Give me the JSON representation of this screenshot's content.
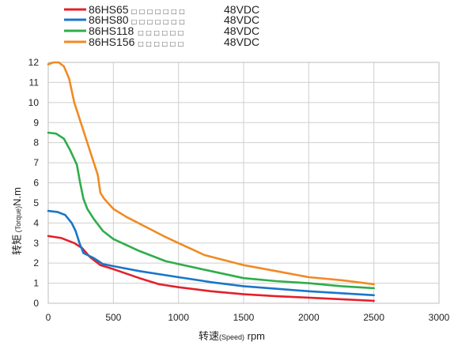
{
  "chart_data": {
    "type": "line",
    "xlabel": {
      "main_before": "转速",
      "small": "(Speed)",
      "main_after": " rpm"
    },
    "ylabel": {
      "main_before": "转矩",
      "small": " (Torque)",
      "main_after": "N.m"
    },
    "xlim": [
      0,
      3000
    ],
    "ylim": [
      0,
      12
    ],
    "x_ticks": [
      "0",
      "500",
      "1000",
      "1500",
      "2000",
      "2500",
      "3000"
    ],
    "y_ticks": [
      "0",
      "1",
      "2",
      "3",
      "4",
      "5",
      "6",
      "7",
      "8",
      "9",
      "10",
      "11",
      "12"
    ],
    "grid": true,
    "legend_position": "top-left",
    "series": [
      {
        "name": "86HS65",
        "legend_boxes": "□ □ □ □ □ □ □",
        "voltage": "48VDC",
        "color": "#e3202b",
        "points": [
          [
            0,
            3.35
          ],
          [
            100,
            3.25
          ],
          [
            200,
            3.0
          ],
          [
            260,
            2.75
          ],
          [
            320,
            2.3
          ],
          [
            400,
            1.9
          ],
          [
            500,
            1.7
          ],
          [
            700,
            1.25
          ],
          [
            850,
            0.95
          ],
          [
            1000,
            0.8
          ],
          [
            1250,
            0.6
          ],
          [
            1500,
            0.45
          ],
          [
            1750,
            0.35
          ],
          [
            2000,
            0.28
          ],
          [
            2250,
            0.2
          ],
          [
            2500,
            0.12
          ]
        ]
      },
      {
        "name": "86HS80",
        "legend_boxes": "□ □ □ □ □ □ □",
        "voltage": "48VDC",
        "color": "#1a76c8",
        "points": [
          [
            0,
            4.6
          ],
          [
            70,
            4.55
          ],
          [
            130,
            4.4
          ],
          [
            180,
            4.0
          ],
          [
            210,
            3.6
          ],
          [
            240,
            3.0
          ],
          [
            270,
            2.5
          ],
          [
            350,
            2.25
          ],
          [
            420,
            1.95
          ],
          [
            500,
            1.85
          ],
          [
            700,
            1.6
          ],
          [
            1000,
            1.3
          ],
          [
            1250,
            1.05
          ],
          [
            1500,
            0.85
          ],
          [
            2000,
            0.6
          ],
          [
            2500,
            0.4
          ]
        ]
      },
      {
        "name": "86HS118",
        "legend_boxes": "□ □ □ □ □ □",
        "voltage": "48VDC",
        "color": "#2fad49",
        "points": [
          [
            0,
            8.5
          ],
          [
            60,
            8.45
          ],
          [
            120,
            8.2
          ],
          [
            170,
            7.6
          ],
          [
            220,
            6.9
          ],
          [
            245,
            6.0
          ],
          [
            270,
            5.2
          ],
          [
            300,
            4.7
          ],
          [
            350,
            4.2
          ],
          [
            420,
            3.6
          ],
          [
            500,
            3.2
          ],
          [
            700,
            2.6
          ],
          [
            900,
            2.1
          ],
          [
            1000,
            1.95
          ],
          [
            1250,
            1.6
          ],
          [
            1500,
            1.25
          ],
          [
            1750,
            1.1
          ],
          [
            2000,
            1.0
          ],
          [
            2250,
            0.85
          ],
          [
            2500,
            0.75
          ]
        ]
      },
      {
        "name": "86HS156",
        "legend_boxes": "□ □ □ □ □ □",
        "voltage": "48VDC",
        "color": "#f08a24",
        "points": [
          [
            0,
            11.9
          ],
          [
            40,
            12.0
          ],
          [
            80,
            12.0
          ],
          [
            120,
            11.8
          ],
          [
            160,
            11.2
          ],
          [
            200,
            10.0
          ],
          [
            260,
            8.8
          ],
          [
            330,
            7.4
          ],
          [
            380,
            6.4
          ],
          [
            400,
            5.5
          ],
          [
            430,
            5.2
          ],
          [
            500,
            4.7
          ],
          [
            600,
            4.3
          ],
          [
            750,
            3.8
          ],
          [
            900,
            3.3
          ],
          [
            1000,
            3.0
          ],
          [
            1200,
            2.4
          ],
          [
            1500,
            1.9
          ],
          [
            1750,
            1.6
          ],
          [
            2000,
            1.3
          ],
          [
            2250,
            1.15
          ],
          [
            2500,
            0.95
          ]
        ]
      }
    ]
  }
}
